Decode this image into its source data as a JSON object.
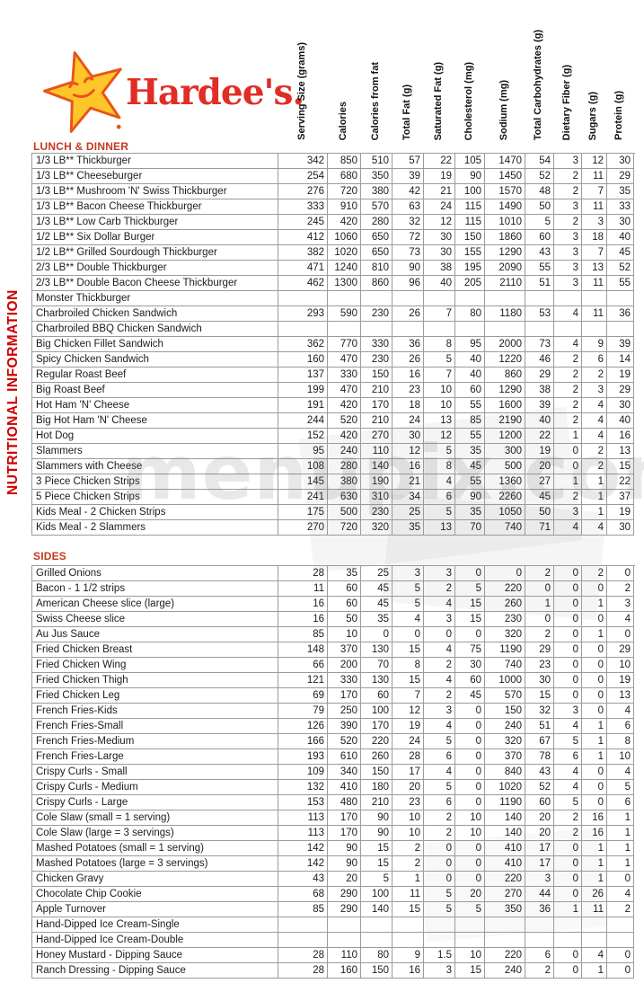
{
  "brand": {
    "wordmark": "Hardee's.",
    "logo_icon": "smiling-star-icon",
    "star_fill": "#ffc629",
    "star_stroke": "#e8541d",
    "wordmark_color": "#e02e26"
  },
  "side_title": "NUTRITIONAL INFORMATION",
  "watermark": "menupix.com",
  "colors": {
    "title_red": "#cc0000",
    "section_red": "#c43a20",
    "grid_gray": "#9b9b9b"
  },
  "columns": [
    "Serving Size (grams)",
    "Calories",
    "Calories from fat",
    "Total Fat (g)",
    "Saturated Fat (g)",
    "Cholesterol (mg)",
    "Sodium (mg)",
    "Total Carbohydrates (g)",
    "Dietary Fiber (g)",
    "Sugars (g)",
    "Protein (g)"
  ],
  "sections": [
    {
      "title": "LUNCH & DINNER",
      "rows": [
        {
          "name": "1/3 LB** Thickburger",
          "values": [
            "342",
            "850",
            "510",
            "57",
            "22",
            "105",
            "1470",
            "54",
            "3",
            "12",
            "30"
          ]
        },
        {
          "name": "1/3 LB** Cheeseburger",
          "values": [
            "254",
            "680",
            "350",
            "39",
            "19",
            "90",
            "1450",
            "52",
            "2",
            "11",
            "29"
          ]
        },
        {
          "name": "1/3 LB** Mushroom 'N' Swiss Thickburger",
          "values": [
            "276",
            "720",
            "380",
            "42",
            "21",
            "100",
            "1570",
            "48",
            "2",
            "7",
            "35"
          ]
        },
        {
          "name": "1/3 LB** Bacon Cheese Thickburger",
          "values": [
            "333",
            "910",
            "570",
            "63",
            "24",
            "115",
            "1490",
            "50",
            "3",
            "11",
            "33"
          ]
        },
        {
          "name": "1/3 LB** Low Carb Thickburger",
          "values": [
            "245",
            "420",
            "280",
            "32",
            "12",
            "115",
            "1010",
            "5",
            "2",
            "3",
            "30"
          ]
        },
        {
          "name": "1/2 LB** Six Dollar Burger",
          "values": [
            "412",
            "1060",
            "650",
            "72",
            "30",
            "150",
            "1860",
            "60",
            "3",
            "18",
            "40"
          ]
        },
        {
          "name": "1/2 LB** Grilled Sourdough Thickburger",
          "values": [
            "382",
            "1020",
            "650",
            "73",
            "30",
            "155",
            "1290",
            "43",
            "3",
            "7",
            "45"
          ]
        },
        {
          "name": "2/3 LB** Double Thickburger",
          "values": [
            "471",
            "1240",
            "810",
            "90",
            "38",
            "195",
            "2090",
            "55",
            "3",
            "13",
            "52"
          ]
        },
        {
          "name": "2/3 LB** Double Bacon Cheese Thickburger",
          "values": [
            "462",
            "1300",
            "860",
            "96",
            "40",
            "205",
            "2110",
            "51",
            "3",
            "11",
            "55"
          ]
        },
        {
          "name": "Monster Thickburger",
          "values": [
            "",
            "",
            "",
            "",
            "",
            "",
            "",
            "",
            "",
            "",
            ""
          ]
        },
        {
          "name": "Charbroiled Chicken Sandwich",
          "values": [
            "293",
            "590",
            "230",
            "26",
            "7",
            "80",
            "1180",
            "53",
            "4",
            "11",
            "36"
          ]
        },
        {
          "name": "Charbroiled BBQ Chicken Sandwich",
          "values": [
            "",
            "",
            "",
            "",
            "",
            "",
            "",
            "",
            "",
            "",
            ""
          ]
        },
        {
          "name": "Big Chicken Fillet Sandwich",
          "values": [
            "362",
            "770",
            "330",
            "36",
            "8",
            "95",
            "2000",
            "73",
            "4",
            "9",
            "39"
          ]
        },
        {
          "name": "Spicy Chicken Sandwich",
          "values": [
            "160",
            "470",
            "230",
            "26",
            "5",
            "40",
            "1220",
            "46",
            "2",
            "6",
            "14"
          ]
        },
        {
          "name": "Regular Roast Beef",
          "values": [
            "137",
            "330",
            "150",
            "16",
            "7",
            "40",
            "860",
            "29",
            "2",
            "2",
            "19"
          ]
        },
        {
          "name": "Big Roast Beef",
          "values": [
            "199",
            "470",
            "210",
            "23",
            "10",
            "60",
            "1290",
            "38",
            "2",
            "3",
            "29"
          ]
        },
        {
          "name": "Hot Ham 'N' Cheese",
          "values": [
            "191",
            "420",
            "170",
            "18",
            "10",
            "55",
            "1600",
            "39",
            "2",
            "4",
            "30"
          ]
        },
        {
          "name": "Big Hot Ham 'N' Cheese",
          "values": [
            "244",
            "520",
            "210",
            "24",
            "13",
            "85",
            "2190",
            "40",
            "2",
            "4",
            "40"
          ]
        },
        {
          "name": "Hot Dog",
          "values": [
            "152",
            "420",
            "270",
            "30",
            "12",
            "55",
            "1200",
            "22",
            "1",
            "4",
            "16"
          ]
        },
        {
          "name": "Slammers",
          "values": [
            "95",
            "240",
            "110",
            "12",
            "5",
            "35",
            "300",
            "19",
            "0",
            "2",
            "13"
          ]
        },
        {
          "name": "Slammers with Cheese",
          "values": [
            "108",
            "280",
            "140",
            "16",
            "8",
            "45",
            "500",
            "20",
            "0",
            "2",
            "15"
          ]
        },
        {
          "name": "3 Piece Chicken Strips",
          "values": [
            "145",
            "380",
            "190",
            "21",
            "4",
            "55",
            "1360",
            "27",
            "1",
            "1",
            "22"
          ]
        },
        {
          "name": "5 Piece Chicken Strips",
          "values": [
            "241",
            "630",
            "310",
            "34",
            "6",
            "90",
            "2260",
            "45",
            "2",
            "1",
            "37"
          ]
        },
        {
          "name": "Kids Meal - 2 Chicken Strips",
          "values": [
            "175",
            "500",
            "230",
            "25",
            "5",
            "35",
            "1050",
            "50",
            "3",
            "1",
            "19"
          ]
        },
        {
          "name": "Kids Meal - 2 Slammers",
          "values": [
            "270",
            "720",
            "320",
            "35",
            "13",
            "70",
            "740",
            "71",
            "4",
            "4",
            "30"
          ]
        }
      ]
    },
    {
      "title": "SIDES",
      "rows": [
        {
          "name": "Grilled Onions",
          "values": [
            "28",
            "35",
            "25",
            "3",
            "3",
            "0",
            "0",
            "2",
            "0",
            "2",
            "0"
          ]
        },
        {
          "name": "Bacon - 1 1/2 strips",
          "values": [
            "11",
            "60",
            "45",
            "5",
            "2",
            "5",
            "220",
            "0",
            "0",
            "0",
            "2"
          ]
        },
        {
          "name": "American Cheese slice (large)",
          "values": [
            "16",
            "60",
            "45",
            "5",
            "4",
            "15",
            "260",
            "1",
            "0",
            "1",
            "3"
          ]
        },
        {
          "name": "Swiss Cheese slice",
          "values": [
            "16",
            "50",
            "35",
            "4",
            "3",
            "15",
            "230",
            "0",
            "0",
            "0",
            "4"
          ]
        },
        {
          "name": "Au Jus Sauce",
          "values": [
            "85",
            "10",
            "0",
            "0",
            "0",
            "0",
            "320",
            "2",
            "0",
            "1",
            "0"
          ]
        },
        {
          "name": "Fried Chicken Breast",
          "values": [
            "148",
            "370",
            "130",
            "15",
            "4",
            "75",
            "1190",
            "29",
            "0",
            "0",
            "29"
          ]
        },
        {
          "name": "Fried Chicken Wing",
          "values": [
            "66",
            "200",
            "70",
            "8",
            "2",
            "30",
            "740",
            "23",
            "0",
            "0",
            "10"
          ]
        },
        {
          "name": "Fried Chicken Thigh",
          "values": [
            "121",
            "330",
            "130",
            "15",
            "4",
            "60",
            "1000",
            "30",
            "0",
            "0",
            "19"
          ]
        },
        {
          "name": "Fried Chicken Leg",
          "values": [
            "69",
            "170",
            "60",
            "7",
            "2",
            "45",
            "570",
            "15",
            "0",
            "0",
            "13"
          ]
        },
        {
          "name": "French Fries-Kids",
          "values": [
            "79",
            "250",
            "100",
            "12",
            "3",
            "0",
            "150",
            "32",
            "3",
            "0",
            "4"
          ]
        },
        {
          "name": "French Fries-Small",
          "values": [
            "126",
            "390",
            "170",
            "19",
            "4",
            "0",
            "240",
            "51",
            "4",
            "1",
            "6"
          ]
        },
        {
          "name": "French Fries-Medium",
          "values": [
            "166",
            "520",
            "220",
            "24",
            "5",
            "0",
            "320",
            "67",
            "5",
            "1",
            "8"
          ]
        },
        {
          "name": "French Fries-Large",
          "values": [
            "193",
            "610",
            "260",
            "28",
            "6",
            "0",
            "370",
            "78",
            "6",
            "1",
            "10"
          ]
        },
        {
          "name": "Crispy Curls - Small",
          "values": [
            "109",
            "340",
            "150",
            "17",
            "4",
            "0",
            "840",
            "43",
            "4",
            "0",
            "4"
          ]
        },
        {
          "name": "Crispy Curls - Medium",
          "values": [
            "132",
            "410",
            "180",
            "20",
            "5",
            "0",
            "1020",
            "52",
            "4",
            "0",
            "5"
          ]
        },
        {
          "name": "Crispy Curls - Large",
          "values": [
            "153",
            "480",
            "210",
            "23",
            "6",
            "0",
            "1190",
            "60",
            "5",
            "0",
            "6"
          ]
        },
        {
          "name": "Cole Slaw (small = 1 serving)",
          "values": [
            "113",
            "170",
            "90",
            "10",
            "2",
            "10",
            "140",
            "20",
            "2",
            "16",
            "1"
          ]
        },
        {
          "name": "Cole Slaw (large = 3 servings)",
          "values": [
            "113",
            "170",
            "90",
            "10",
            "2",
            "10",
            "140",
            "20",
            "2",
            "16",
            "1"
          ]
        },
        {
          "name": "Mashed Potatoes (small = 1 serving)",
          "values": [
            "142",
            "90",
            "15",
            "2",
            "0",
            "0",
            "410",
            "17",
            "0",
            "1",
            "1"
          ]
        },
        {
          "name": "Mashed Potatoes (large = 3 servings)",
          "values": [
            "142",
            "90",
            "15",
            "2",
            "0",
            "0",
            "410",
            "17",
            "0",
            "1",
            "1"
          ]
        },
        {
          "name": "Chicken Gravy",
          "values": [
            "43",
            "20",
            "5",
            "1",
            "0",
            "0",
            "220",
            "3",
            "0",
            "1",
            "0"
          ]
        },
        {
          "name": "Chocolate Chip Cookie",
          "values": [
            "68",
            "290",
            "100",
            "11",
            "5",
            "20",
            "270",
            "44",
            "0",
            "26",
            "4"
          ]
        },
        {
          "name": "Apple Turnover",
          "values": [
            "85",
            "290",
            "140",
            "15",
            "5",
            "5",
            "350",
            "36",
            "1",
            "11",
            "2"
          ]
        },
        {
          "name": "Hand-Dipped Ice Cream-Single",
          "values": [
            "",
            "",
            "",
            "",
            "",
            "",
            "",
            "",
            "",
            "",
            ""
          ]
        },
        {
          "name": "Hand-Dipped Ice Cream-Double",
          "values": [
            "",
            "",
            "",
            "",
            "",
            "",
            "",
            "",
            "",
            "",
            ""
          ]
        },
        {
          "name": "Honey Mustard - Dipping Sauce",
          "values": [
            "28",
            "110",
            "80",
            "9",
            "1.5",
            "10",
            "220",
            "6",
            "0",
            "4",
            "0"
          ]
        },
        {
          "name": "Ranch Dressing - Dipping Sauce",
          "values": [
            "28",
            "160",
            "150",
            "16",
            "3",
            "15",
            "240",
            "2",
            "0",
            "1",
            "0"
          ]
        }
      ]
    }
  ]
}
